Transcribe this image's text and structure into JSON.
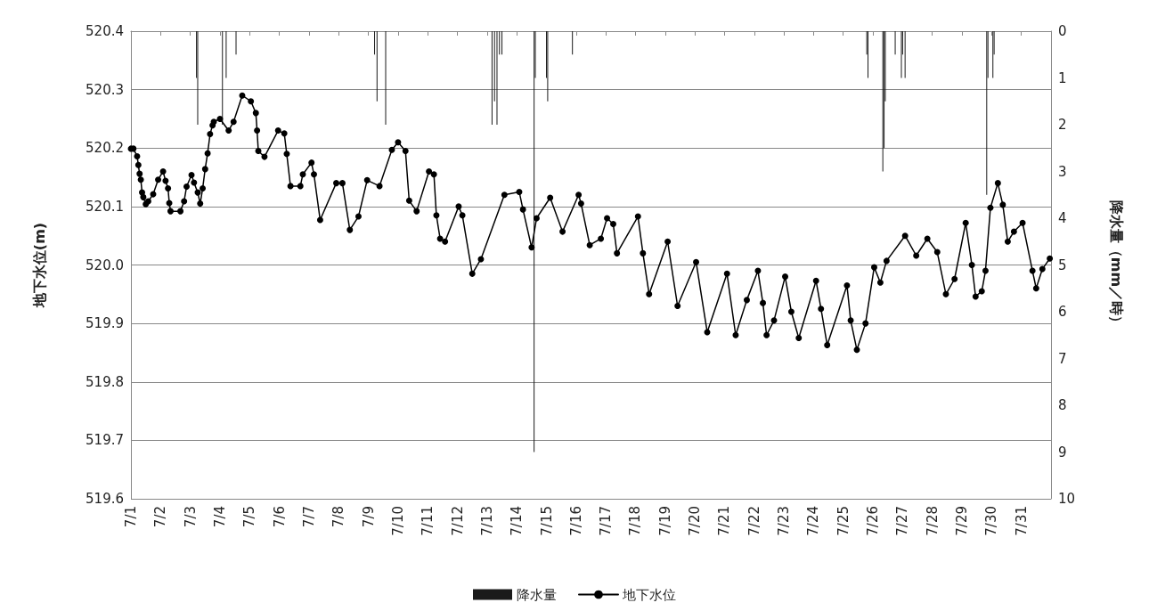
{
  "chart_data": {
    "type": "line",
    "ylabel": "地下水位(m)",
    "y2label": "降水量（mm／時）",
    "xlim": [
      "--07-01T00:00",
      "--08-01T00:00"
    ],
    "xticks": [
      {
        "value": "--07-01T00:00",
        "label": "7/1"
      },
      {
        "value": "--07-02T00:00",
        "label": "7/2"
      },
      {
        "value": "--07-03T00:00",
        "label": "7/3"
      },
      {
        "value": "--07-04T00:00",
        "label": "7/4"
      },
      {
        "value": "--07-05T00:00",
        "label": "7/5"
      },
      {
        "value": "--07-06T00:00",
        "label": "7/6"
      },
      {
        "value": "--07-07T00:00",
        "label": "7/7"
      },
      {
        "value": "--07-08T00:00",
        "label": "7/8"
      },
      {
        "value": "--07-09T00:00",
        "label": "7/9"
      },
      {
        "value": "--07-10T00:00",
        "label": "7/10"
      },
      {
        "value": "--07-11T00:00",
        "label": "7/11"
      },
      {
        "value": "--07-12T00:00",
        "label": "7/12"
      },
      {
        "value": "--07-13T00:00",
        "label": "7/13"
      },
      {
        "value": "--07-14T00:00",
        "label": "7/14"
      },
      {
        "value": "--07-15T00:00",
        "label": "7/15"
      },
      {
        "value": "--07-16T00:00",
        "label": "7/16"
      },
      {
        "value": "--07-17T00:00",
        "label": "7/17"
      },
      {
        "value": "--07-18T00:00",
        "label": "7/18"
      },
      {
        "value": "--07-19T00:00",
        "label": "7/19"
      },
      {
        "value": "--07-20T00:00",
        "label": "7/20"
      },
      {
        "value": "--07-21T00:00",
        "label": "7/21"
      },
      {
        "value": "--07-22T00:00",
        "label": "7/22"
      },
      {
        "value": "--07-23T00:00",
        "label": "7/23"
      },
      {
        "value": "--07-24T00:00",
        "label": "7/24"
      },
      {
        "value": "--07-25T00:00",
        "label": "7/25"
      },
      {
        "value": "--07-26T00:00",
        "label": "7/26"
      },
      {
        "value": "--07-27T00:00",
        "label": "7/27"
      },
      {
        "value": "--07-28T00:00",
        "label": "7/28"
      },
      {
        "value": "--07-29T00:00",
        "label": "7/29"
      },
      {
        "value": "--07-30T00:00",
        "label": "7/30"
      },
      {
        "value": "--07-31T00:00",
        "label": "7/31"
      }
    ],
    "ylim": [
      519.6,
      520.4
    ],
    "yticks": [
      {
        "value": 519.6,
        "label": "519.6"
      },
      {
        "value": 519.7,
        "label": "519.7"
      },
      {
        "value": 519.8,
        "label": "519.8"
      },
      {
        "value": 519.9,
        "label": "519.9"
      },
      {
        "value": 520.0,
        "label": "520.0"
      },
      {
        "value": 520.1,
        "label": "520.1"
      },
      {
        "value": 520.2,
        "label": "520.2"
      },
      {
        "value": 520.3,
        "label": "520.3"
      },
      {
        "value": 520.4,
        "label": "520.4"
      }
    ],
    "y2lim": [
      10,
      0
    ],
    "y2ticks": [
      0,
      1,
      2,
      3,
      4,
      5,
      6,
      7,
      8,
      9,
      10
    ],
    "grid": "y",
    "legend": "bottom",
    "marker": "circle",
    "line_style": "solid",
    "series": [
      {
        "name": "降水量",
        "type": "bar",
        "axis": "y2",
        "color": "#1a1a1a",
        "x": [
          "--07-03T05:00",
          "--07-03T06:00",
          "--07-04T02:00",
          "--07-04T05:00",
          "--07-04T13:00",
          "--07-09T05:00",
          "--07-09T07:00",
          "--07-09T14:00",
          "--07-13T04:00",
          "--07-13T06:00",
          "--07-13T08:00",
          "--07-13T10:00",
          "--07-13T12:00",
          "--07-14T14:00",
          "--07-14T15:00",
          "--07-15T00:00",
          "--07-15T01:00",
          "--07-15T21:00",
          "--07-25T19:00",
          "--07-25T20:00",
          "--07-26T08:00",
          "--07-26T09:00",
          "--07-26T10:00",
          "--07-26T18:00",
          "--07-26T23:00",
          "--07-27T00:00",
          "--07-27T02:00",
          "--07-29T20:00",
          "--07-29T21:00",
          "--07-30T01:00",
          "--07-30T02:00"
        ],
        "values": [
          1.0,
          2.0,
          2.0,
          1.0,
          0.5,
          0.5,
          1.5,
          2.0,
          2.0,
          1.5,
          2.0,
          0.5,
          0.5,
          9.0,
          1.0,
          1.0,
          1.5,
          0.5,
          0.5,
          1.0,
          3.0,
          2.5,
          1.5,
          0.5,
          1.0,
          0.5,
          1.0,
          3.5,
          1.0,
          1.0,
          0.5
        ]
      },
      {
        "name": "地下水位",
        "color": "#000000",
        "x": [
          "--07-01T00:00",
          "--07-01T02:00",
          "--07-01T05:00",
          "--07-01T06:00",
          "--07-01T07:00",
          "--07-01T08:00",
          "--07-01T09:00",
          "--07-01T10:00",
          "--07-01T12:00",
          "--07-01T14:00",
          "--07-01T18:00",
          "--07-01T22:00",
          "--07-02T02:00",
          "--07-02T04:00",
          "--07-02T06:00",
          "--07-02T07:00",
          "--07-02T08:00",
          "--07-02T16:00",
          "--07-02T19:00",
          "--07-02T21:00",
          "--07-03T01:00",
          "--07-03T03:00",
          "--07-03T06:00",
          "--07-03T08:00",
          "--07-03T10:00",
          "--07-03T12:00",
          "--07-03T14:00",
          "--07-03T16:00",
          "--07-03T18:00",
          "--07-03T19:00",
          "--07-04T00:00",
          "--07-04T07:00",
          "--07-04T11:00",
          "--07-04T18:00",
          "--07-05T01:00",
          "--07-05T05:00",
          "--07-05T06:00",
          "--07-05T07:00",
          "--07-05T12:00",
          "--07-05T23:00",
          "--07-06T04:00",
          "--07-06T06:00",
          "--07-06T09:00",
          "--07-06T17:00",
          "--07-06T19:00",
          "--07-07T02:00",
          "--07-07T04:00",
          "--07-07T09:00",
          "--07-07T22:00",
          "--07-08T03:00",
          "--07-08T09:00",
          "--07-08T16:00",
          "--07-08T23:00",
          "--07-09T09:00",
          "--07-09T19:00",
          "--07-10T00:00",
          "--07-10T06:00",
          "--07-10T09:00",
          "--07-10T15:00",
          "--07-11T01:00",
          "--07-11T05:00",
          "--07-11T07:00",
          "--07-11T10:00",
          "--07-11T14:00",
          "--07-12T01:00",
          "--07-12T04:00",
          "--07-12T12:00",
          "--07-12T19:00",
          "--07-13T14:00",
          "--07-14T02:00",
          "--07-14T05:00",
          "--07-14T12:00",
          "--07-14T16:00",
          "--07-15T03:00",
          "--07-15T13:00",
          "--07-16T02:00",
          "--07-16T04:00",
          "--07-16T11:00",
          "--07-16T20:00",
          "--07-17T01:00",
          "--07-17T06:00",
          "--07-17T09:00",
          "--07-18T02:00",
          "--07-18T06:00",
          "--07-18T11:00",
          "--07-19T02:00",
          "--07-19T10:00",
          "--07-20T01:00",
          "--07-20T10:00",
          "--07-21T02:00",
          "--07-21T09:00",
          "--07-21T18:00",
          "--07-22T03:00",
          "--07-22T07:00",
          "--07-22T10:00",
          "--07-22T16:00",
          "--07-23T01:00",
          "--07-23T06:00",
          "--07-23T12:00",
          "--07-24T02:00",
          "--07-24T06:00",
          "--07-24T11:00",
          "--07-25T03:00",
          "--07-25T06:00",
          "--07-25T11:00",
          "--07-25T18:00",
          "--07-26T01:00",
          "--07-26T06:00",
          "--07-26T11:00",
          "--07-27T02:00",
          "--07-27T11:00",
          "--07-27T20:00",
          "--07-28T04:00",
          "--07-28T11:00",
          "--07-28T18:00",
          "--07-29T03:00",
          "--07-29T08:00",
          "--07-29T11:00",
          "--07-29T16:00",
          "--07-29T19:00",
          "--07-29T23:00",
          "--07-30T05:00",
          "--07-30T09:00",
          "--07-30T13:00",
          "--07-30T18:00",
          "--07-31T01:00",
          "--07-31T09:00",
          "--07-31T12:00",
          "--07-31T17:00",
          "--07-31T23:00"
        ],
        "values": [
          520.199,
          520.199,
          520.186,
          520.171,
          520.156,
          520.146,
          520.124,
          520.116,
          520.104,
          520.109,
          520.121,
          520.146,
          520.16,
          520.144,
          520.131,
          520.106,
          520.092,
          520.092,
          520.109,
          520.134,
          520.154,
          520.141,
          520.124,
          520.105,
          520.131,
          520.164,
          520.191,
          520.224,
          520.239,
          520.245,
          520.25,
          520.23,
          520.245,
          520.29,
          520.28,
          520.26,
          520.23,
          520.195,
          520.185,
          520.23,
          520.225,
          520.19,
          520.135,
          520.135,
          520.155,
          520.175,
          520.155,
          520.077,
          520.14,
          520.14,
          520.06,
          520.083,
          520.145,
          520.135,
          520.197,
          520.21,
          520.195,
          520.11,
          520.092,
          520.16,
          520.155,
          520.085,
          520.045,
          520.04,
          520.1,
          520.085,
          519.985,
          520.01,
          520.12,
          520.125,
          520.095,
          520.03,
          520.08,
          520.115,
          520.057,
          520.12,
          520.105,
          520.034,
          520.045,
          520.08,
          520.07,
          520.02,
          520.083,
          520.02,
          519.95,
          520.04,
          519.93,
          520.005,
          519.885,
          519.985,
          519.88,
          519.94,
          519.99,
          519.935,
          519.88,
          519.905,
          519.98,
          519.92,
          519.875,
          519.973,
          519.925,
          519.863,
          519.965,
          519.905,
          519.855,
          519.9,
          519.996,
          519.97,
          520.007,
          520.05,
          520.016,
          520.045,
          520.022,
          519.95,
          519.976,
          520.072,
          520.0,
          519.946,
          519.955,
          519.99,
          520.098,
          520.14,
          520.103,
          520.04,
          520.057,
          520.072,
          519.99,
          519.96,
          519.993,
          520.011
        ]
      }
    ]
  }
}
